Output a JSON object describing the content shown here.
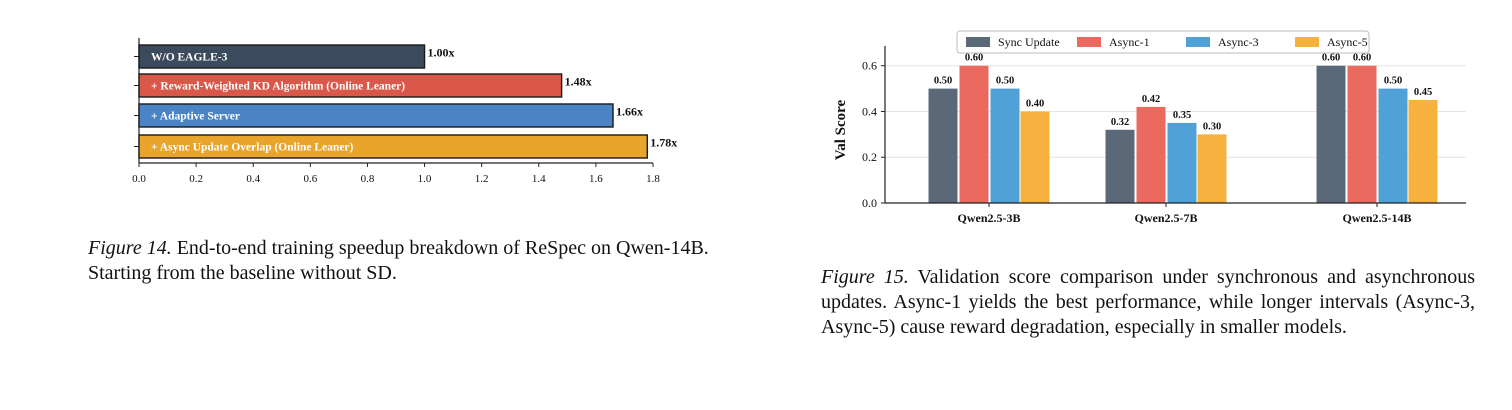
{
  "figures": [
    {
      "caption_label": "Figure 14.",
      "caption_text": " End-to-end training speedup breakdown of ReSpec on Qwen-14B. Starting from the baseline without SD."
    },
    {
      "caption_label": "Figure 15.",
      "caption_text": " Validation score comparison under synchronous and asynchronous updates. Async-1 yields the best performance, while longer intervals (Async-3, Async-5) cause reward degradation, especially in smaller models."
    }
  ],
  "chart_data": [
    {
      "type": "bar",
      "orientation": "horizontal",
      "title": "",
      "xlabel": "",
      "ylabel": "",
      "xlim": [
        0,
        1.8
      ],
      "grid": false,
      "categories": [
        "W/O EAGLE-3",
        "+ Reward-Weighted KD Algorithm (Online Leaner)",
        "+ Adaptive Server",
        "+ Async Update Overlap (Online Leaner)"
      ],
      "values": [
        1.0,
        1.48,
        1.66,
        1.78
      ],
      "value_labels": [
        "1.00x",
        "1.48x",
        "1.66x",
        "1.78x"
      ],
      "colors": [
        "#3b4a5c",
        "#d9584a",
        "#4a84c4",
        "#e9a42c"
      ],
      "x_ticks": [
        "0.0",
        "0.2",
        "0.4",
        "0.6",
        "0.8",
        "1.0",
        "1.2",
        "1.4",
        "1.6",
        "1.8"
      ]
    },
    {
      "type": "bar",
      "title": "",
      "xlabel": "",
      "ylabel": "Val Score",
      "ylim": [
        0,
        0.66
      ],
      "grid": true,
      "legend_position": "top-center",
      "categories": [
        "Qwen2.5-3B",
        "Qwen2.5-7B",
        "Qwen2.5-14B"
      ],
      "series": [
        {
          "name": "Sync Update",
          "color": "#5a6878",
          "values": [
            0.5,
            0.32,
            0.6
          ],
          "labels": [
            "0.50",
            "0.32",
            "0.60"
          ]
        },
        {
          "name": "Async-1",
          "color": "#ea6a5f",
          "values": [
            0.6,
            0.42,
            0.6
          ],
          "labels": [
            "0.60",
            "0.42",
            "0.60"
          ]
        },
        {
          "name": "Async-3",
          "color": "#4fa1d8",
          "values": [
            0.5,
            0.35,
            0.5
          ],
          "labels": [
            "0.50",
            "0.35",
            "0.50"
          ]
        },
        {
          "name": "Async-5",
          "color": "#f6b13e",
          "values": [
            0.4,
            0.3,
            0.45
          ],
          "labels": [
            "0.40",
            "0.30",
            "0.45"
          ]
        }
      ],
      "y_ticks": [
        "0.0",
        "0.2",
        "0.4",
        "0.6"
      ]
    }
  ]
}
